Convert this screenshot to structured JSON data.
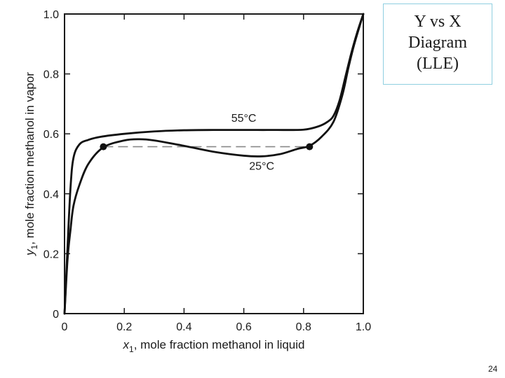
{
  "slide": {
    "title_lines": [
      "Y vs X",
      "Diagram",
      "(LLE)"
    ],
    "page_number": "24"
  },
  "chart_data": {
    "type": "line",
    "xlim": [
      0,
      1.0
    ],
    "ylim": [
      0,
      1.0
    ],
    "x_ticks": [
      "0",
      "0.2",
      "0.4",
      "0.6",
      "0.8",
      "1.0"
    ],
    "y_ticks": [
      "0",
      "0.2",
      "0.4",
      "0.6",
      "0.8",
      "1.0"
    ],
    "xlabel": {
      "var": "x",
      "sub": "1",
      "rest": ", mole fraction methanol in liquid"
    },
    "ylabel": {
      "var": "y",
      "sub": "1",
      "rest": ", mole fraction methanol in vapor"
    },
    "grid": false,
    "series": [
      {
        "name": "55°C",
        "x": [
          0,
          0.01,
          0.02,
          0.03,
          0.05,
          0.08,
          0.12,
          0.2,
          0.3,
          0.4,
          0.5,
          0.6,
          0.7,
          0.8,
          0.85,
          0.88,
          0.9,
          0.92,
          0.94,
          0.96,
          0.98,
          1.0
        ],
        "y": [
          0,
          0.22,
          0.42,
          0.52,
          0.565,
          0.58,
          0.59,
          0.6,
          0.608,
          0.612,
          0.613,
          0.613,
          0.613,
          0.614,
          0.625,
          0.64,
          0.66,
          0.71,
          0.79,
          0.87,
          0.94,
          1.0
        ]
      },
      {
        "name": "25°C",
        "x": [
          0,
          0.01,
          0.02,
          0.03,
          0.05,
          0.08,
          0.13,
          0.2,
          0.25,
          0.3,
          0.4,
          0.5,
          0.6,
          0.66,
          0.72,
          0.78,
          0.82,
          0.86,
          0.9,
          0.93,
          0.95,
          0.97,
          1.0
        ],
        "y": [
          0,
          0.18,
          0.28,
          0.36,
          0.43,
          0.5,
          0.555,
          0.578,
          0.582,
          0.578,
          0.56,
          0.54,
          0.527,
          0.525,
          0.532,
          0.55,
          0.56,
          0.59,
          0.64,
          0.73,
          0.82,
          0.9,
          1.0
        ]
      }
    ],
    "tie_line": {
      "x": [
        0.13,
        0.82
      ],
      "y": [
        0.557,
        0.557
      ],
      "style": "dashed"
    },
    "points": [
      {
        "x": 0.13,
        "y": 0.557
      },
      {
        "x": 0.82,
        "y": 0.557
      }
    ],
    "annotations": [
      {
        "text": "55°C",
        "x": 0.6,
        "y": 0.64
      },
      {
        "text": "25°C",
        "x": 0.66,
        "y": 0.48
      }
    ]
  }
}
